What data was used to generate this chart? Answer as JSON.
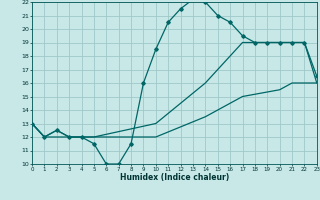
{
  "xlabel": "Humidex (Indice chaleur)",
  "bg_color": "#c8e8e8",
  "grid_color": "#a0c8c8",
  "line_color": "#006666",
  "xlim": [
    0,
    23
  ],
  "ylim": [
    10,
    22
  ],
  "xticks": [
    0,
    1,
    2,
    3,
    4,
    5,
    6,
    7,
    8,
    9,
    10,
    11,
    12,
    13,
    14,
    15,
    16,
    17,
    18,
    19,
    20,
    21,
    22,
    23
  ],
  "yticks": [
    10,
    11,
    12,
    13,
    14,
    15,
    16,
    17,
    18,
    19,
    20,
    21,
    22
  ],
  "line1_x": [
    0,
    1,
    2,
    3,
    4,
    5,
    6,
    7,
    8,
    9,
    10,
    11,
    12,
    13,
    14,
    15,
    16,
    17,
    18,
    19,
    20,
    21,
    22,
    23
  ],
  "line1_y": [
    13,
    12,
    12.5,
    12,
    12,
    11.5,
    10,
    10,
    11.5,
    16,
    18.5,
    20.5,
    21.5,
    22.2,
    22,
    21,
    20.5,
    19.5,
    19,
    19,
    19,
    19,
    19,
    16.5
  ],
  "line2_x": [
    0,
    1,
    2,
    3,
    4,
    5,
    10,
    14,
    17,
    19,
    20,
    21,
    22,
    23
  ],
  "line2_y": [
    13,
    12,
    12.5,
    12,
    12,
    12,
    13,
    16,
    19,
    19,
    19,
    19,
    19,
    16
  ],
  "line3_x": [
    0,
    1,
    5,
    10,
    14,
    17,
    20,
    21,
    22,
    23
  ],
  "line3_y": [
    13,
    12,
    12,
    12,
    13.5,
    15,
    15.5,
    16,
    16,
    16
  ]
}
